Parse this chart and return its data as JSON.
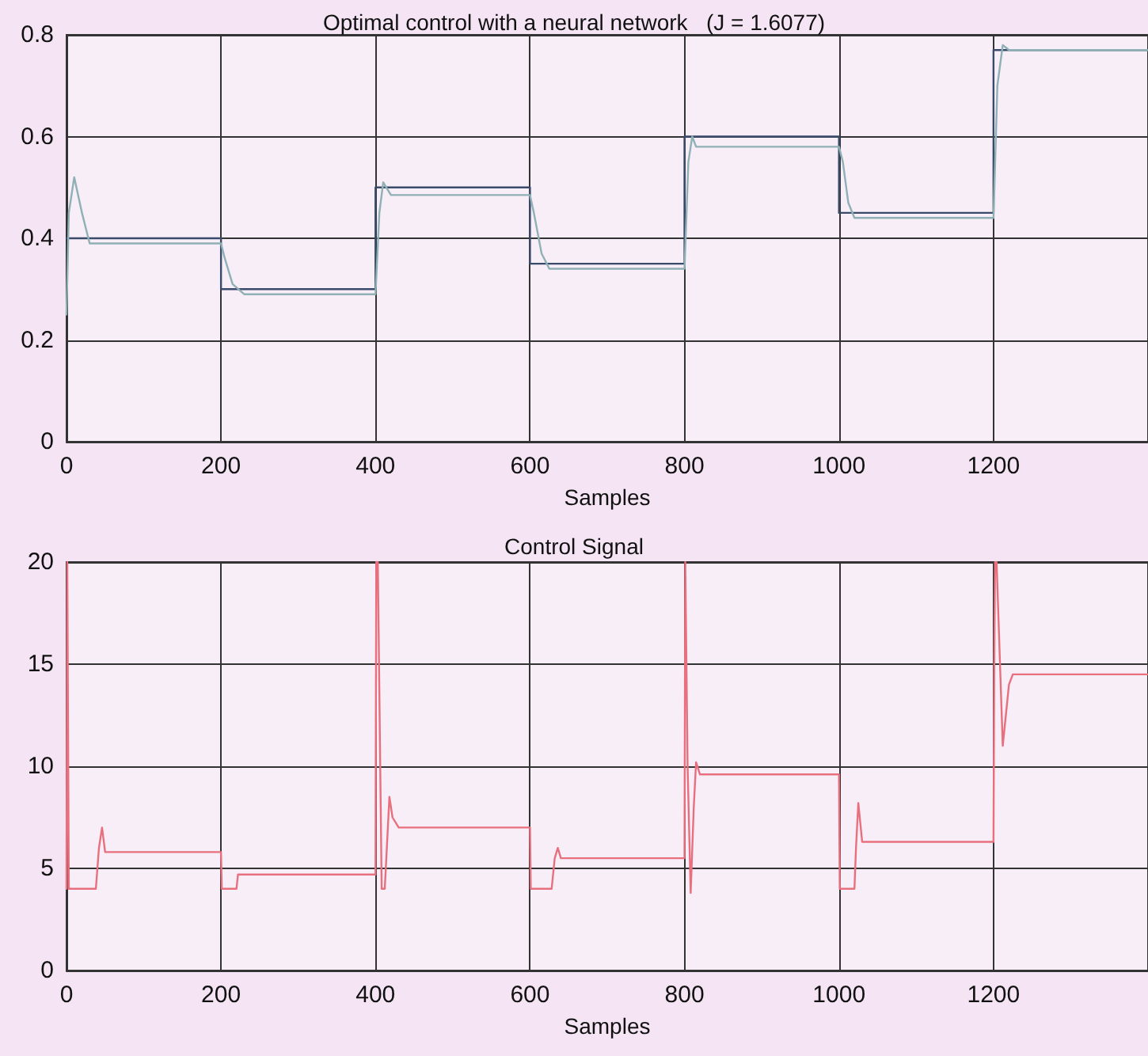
{
  "chart_data": [
    {
      "type": "line",
      "title": "Optimal control with a neural network   (J = 1.6077)",
      "xlabel": "Samples",
      "xlim": [
        0,
        1400
      ],
      "xticks": [
        0,
        200,
        400,
        600,
        800,
        1000,
        1200
      ],
      "ylim": [
        0,
        0.8
      ],
      "yticks": [
        0,
        0.2,
        0.4,
        0.6,
        0.8
      ],
      "grid": true,
      "marker": "none",
      "series": [
        {
          "color": "#3a4a6a",
          "x": [
            0,
            200,
            200,
            400,
            400,
            600,
            600,
            800,
            800,
            1000,
            1000,
            1200,
            1200,
            1400
          ],
          "values": [
            0.4,
            0.4,
            0.3,
            0.3,
            0.5,
            0.5,
            0.35,
            0.35,
            0.6,
            0.6,
            0.45,
            0.45,
            0.77,
            0.77
          ]
        },
        {
          "color": "#8fb0b4",
          "x": [
            0,
            3,
            10,
            20,
            30,
            200,
            205,
            215,
            230,
            400,
            405,
            410,
            420,
            600,
            605,
            615,
            625,
            800,
            805,
            810,
            815,
            1000,
            1005,
            1012,
            1020,
            1200,
            1205,
            1212,
            1220,
            1400
          ],
          "values": [
            0.25,
            0.45,
            0.52,
            0.45,
            0.39,
            0.39,
            0.36,
            0.31,
            0.29,
            0.29,
            0.45,
            0.51,
            0.485,
            0.485,
            0.45,
            0.37,
            0.34,
            0.34,
            0.55,
            0.6,
            0.58,
            0.58,
            0.55,
            0.47,
            0.44,
            0.44,
            0.7,
            0.78,
            0.77,
            0.77
          ]
        }
      ]
    },
    {
      "type": "line",
      "title": "Control Signal",
      "xlabel": "Samples",
      "xlim": [
        0,
        1400
      ],
      "xticks": [
        0,
        200,
        400,
        600,
        800,
        1000,
        1200
      ],
      "ylim": [
        0,
        20
      ],
      "yticks": [
        0,
        5,
        10,
        15,
        20
      ],
      "grid": true,
      "marker": "none",
      "series": [
        {
          "color": "#e8707e",
          "x": [
            0,
            1,
            3,
            38,
            42,
            46,
            50,
            200,
            201,
            220,
            222,
            400,
            401,
            403,
            408,
            412,
            418,
            422,
            430,
            600,
            601,
            628,
            632,
            636,
            640,
            800,
            801,
            802,
            804,
            808,
            812,
            815,
            820,
            1000,
            1001,
            1020,
            1022,
            1025,
            1030,
            1200,
            1201,
            1202,
            1204,
            1212,
            1220,
            1225,
            1400
          ],
          "values": [
            4,
            20,
            4,
            4,
            6,
            7,
            5.8,
            5.8,
            4,
            4,
            4.7,
            4.7,
            20,
            20,
            4,
            4,
            8.5,
            7.5,
            7,
            7,
            4,
            4,
            5.5,
            6,
            5.5,
            5.5,
            20,
            20,
            10,
            3.8,
            8,
            10.2,
            9.6,
            9.6,
            4,
            4,
            6,
            8.2,
            6.3,
            6.3,
            15,
            20,
            20,
            11,
            14,
            14.5,
            14.5
          ]
        }
      ]
    }
  ]
}
